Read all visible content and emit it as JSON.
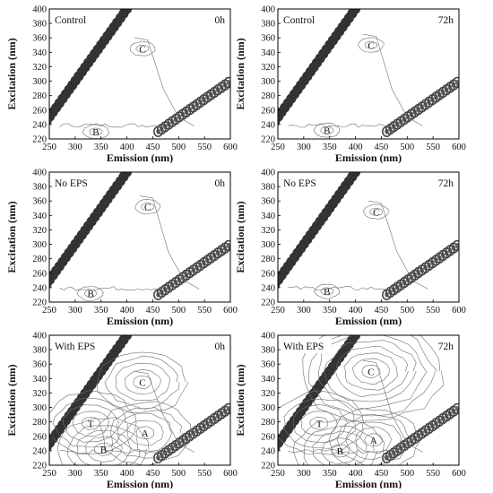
{
  "chart_data": [
    {
      "type": "contour",
      "condition": "Control",
      "time": "0h",
      "x": {
        "label": "Emission (nm)",
        "ticks": [
          250,
          300,
          350,
          400,
          450,
          500,
          550,
          600
        ],
        "range": [
          250,
          600
        ]
      },
      "y": {
        "label": "Excitation (nm)",
        "ticks": [
          220,
          240,
          260,
          280,
          300,
          320,
          340,
          360,
          380,
          400
        ],
        "range": [
          220,
          400
        ]
      },
      "peaks": [
        {
          "label": "C",
          "em": 430,
          "ex": 345
        },
        {
          "label": "B",
          "em": 340,
          "ex": 230
        }
      ],
      "blob_text": []
    },
    {
      "type": "contour",
      "condition": "Control",
      "time": "72h",
      "x": {
        "label": "Emission (nm)",
        "ticks": [
          250,
          300,
          350,
          400,
          450,
          500,
          550,
          600
        ],
        "range": [
          250,
          600
        ]
      },
      "y": {
        "label": "Excitation (nm)",
        "ticks": [
          220,
          240,
          260,
          280,
          300,
          320,
          340,
          360,
          380,
          400
        ],
        "range": [
          220,
          400
        ]
      },
      "peaks": [
        {
          "label": "C",
          "em": 430,
          "ex": 350
        },
        {
          "label": "B",
          "em": 345,
          "ex": 232
        }
      ],
      "blob_text": []
    },
    {
      "type": "contour",
      "condition": "No EPS",
      "time": "0h",
      "x": {
        "label": "Emission (nm)",
        "ticks": [
          250,
          300,
          350,
          400,
          450,
          500,
          550,
          600
        ],
        "range": [
          250,
          600
        ]
      },
      "y": {
        "label": "Excitation (nm)",
        "ticks": [
          220,
          240,
          260,
          280,
          300,
          320,
          340,
          360,
          380,
          400
        ],
        "range": [
          220,
          400
        ]
      },
      "peaks": [
        {
          "label": "C",
          "em": 440,
          "ex": 352
        },
        {
          "label": "B",
          "em": 330,
          "ex": 232
        }
      ],
      "blob_text": []
    },
    {
      "type": "contour",
      "condition": "No EPS",
      "time": "72h",
      "x": {
        "label": "Emission (nm)",
        "ticks": [
          250,
          300,
          350,
          400,
          450,
          500,
          550,
          600
        ],
        "range": [
          250,
          600
        ]
      },
      "y": {
        "label": "Excitation (nm)",
        "ticks": [
          220,
          240,
          260,
          280,
          300,
          320,
          340,
          360,
          380,
          400
        ],
        "range": [
          220,
          400
        ]
      },
      "peaks": [
        {
          "label": "C",
          "em": 440,
          "ex": 345
        },
        {
          "label": "B",
          "em": 345,
          "ex": 235
        }
      ],
      "blob_text": []
    },
    {
      "type": "contour",
      "condition": "With EPS",
      "time": "0h",
      "x": {
        "label": "Emission (nm)",
        "ticks": [
          250,
          300,
          350,
          400,
          450,
          500,
          550,
          600
        ],
        "range": [
          250,
          600
        ]
      },
      "y": {
        "label": "Excitation (nm)",
        "ticks": [
          220,
          240,
          260,
          280,
          300,
          320,
          340,
          360,
          380,
          400
        ],
        "range": [
          220,
          400
        ]
      },
      "peaks": [
        {
          "label": "C",
          "em": 430,
          "ex": 335
        },
        {
          "label": "T",
          "em": 330,
          "ex": 278
        },
        {
          "label": "A",
          "em": 435,
          "ex": 265
        },
        {
          "label": "B",
          "em": 355,
          "ex": 242
        }
      ],
      "blob_text": []
    },
    {
      "type": "contour",
      "condition": "With EPS",
      "time": "72h",
      "x": {
        "label": "Emission (nm)",
        "ticks": [
          250,
          300,
          350,
          400,
          450,
          500,
          550,
          600
        ],
        "range": [
          250,
          600
        ]
      },
      "y": {
        "label": "Excitation (nm)",
        "ticks": [
          220,
          240,
          260,
          280,
          300,
          320,
          340,
          360,
          380,
          400
        ],
        "range": [
          220,
          400
        ]
      },
      "peaks": [
        {
          "label": "C",
          "em": 430,
          "ex": 350
        },
        {
          "label": "T",
          "em": 330,
          "ex": 278
        },
        {
          "label": "A",
          "em": 435,
          "ex": 255
        },
        {
          "label": "B",
          "em": 370,
          "ex": 240
        }
      ],
      "blob_text": []
    }
  ],
  "series_style": {
    "scatter_band_color": "#333333",
    "contour_color": "#6f6f6f",
    "frame_color": "#000000"
  }
}
